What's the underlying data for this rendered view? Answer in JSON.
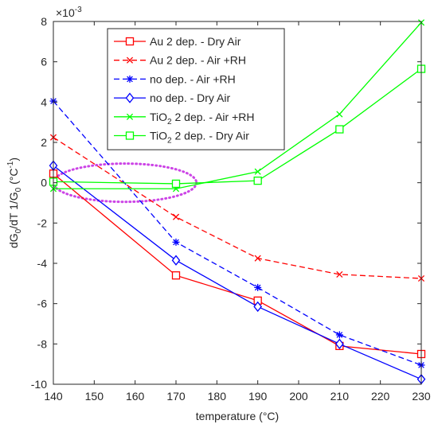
{
  "chart_data": {
    "type": "line",
    "xlabel": "temperature (°C)",
    "ylabel": "dG0/dT 1/G0 (°C-1)",
    "ylabel_parts": {
      "a": "dG",
      "a_sub": "0",
      "b": "/dT 1/G",
      "b_sub": "0",
      "c": " (°C",
      "c_sup": "-1",
      "d": ")"
    },
    "exponent_label": {
      "base": "×10",
      "power": "-3"
    },
    "xlim": [
      140,
      230
    ],
    "ylim": [
      -10,
      8
    ],
    "xticks": [
      140,
      150,
      160,
      170,
      180,
      190,
      200,
      210,
      220,
      230
    ],
    "yticks": [
      -10,
      -8,
      -6,
      -4,
      -2,
      0,
      2,
      4,
      6,
      8
    ],
    "grid": false,
    "legend_position": "top-left inside",
    "series": [
      {
        "name": "Au 2 dep. - Dry Air",
        "legend_parts": {
          "pre": "Au 2 dep. - Dry Air",
          "sub": "",
          "post": ""
        },
        "color": "#ff0000",
        "dash": "solid",
        "marker": "square",
        "x": [
          140,
          170,
          190,
          210,
          230
        ],
        "y": [
          0.45,
          -4.6,
          -5.85,
          -8.1,
          -8.5
        ]
      },
      {
        "name": "Au 2 dep. - Air +RH",
        "legend_parts": {
          "pre": "Au 2 dep. - Air +RH",
          "sub": "",
          "post": ""
        },
        "color": "#ff0000",
        "dash": "dashed",
        "marker": "x",
        "x": [
          140,
          170,
          190,
          210,
          230
        ],
        "y": [
          2.25,
          -1.7,
          -3.75,
          -4.55,
          -4.75
        ]
      },
      {
        "name": "no dep. - Air +RH",
        "legend_parts": {
          "pre": "no dep. - Air +RH",
          "sub": "",
          "post": ""
        },
        "color": "#0000ff",
        "dash": "dashed",
        "marker": "star",
        "x": [
          140,
          170,
          190,
          210,
          230
        ],
        "y": [
          4.05,
          -2.95,
          -5.2,
          -7.55,
          -9.05
        ]
      },
      {
        "name": "no dep. - Dry Air",
        "legend_parts": {
          "pre": "no dep. - Dry Air",
          "sub": "",
          "post": ""
        },
        "color": "#0000ff",
        "dash": "solid",
        "marker": "diamond",
        "x": [
          140,
          170,
          190,
          210,
          230
        ],
        "y": [
          0.85,
          -3.85,
          -6.15,
          -8.0,
          -9.75
        ]
      },
      {
        "name": "TiO2 2 dep. - Air +RH",
        "legend_parts": {
          "pre": "TiO",
          "sub": "2",
          "post": " 2 dep. - Air +RH"
        },
        "color": "#00ff00",
        "dash": "solid",
        "marker": "x",
        "x": [
          140,
          170,
          190,
          210,
          230
        ],
        "y": [
          -0.3,
          -0.3,
          0.55,
          3.4,
          7.95
        ]
      },
      {
        "name": "TiO2 2 dep. - Dry Air",
        "legend_parts": {
          "pre": "TiO",
          "sub": "2",
          "post": " 2 dep. - Dry Air"
        },
        "color": "#00ff00",
        "dash": "solid",
        "marker": "square",
        "x": [
          140,
          170,
          190,
          210,
          230
        ],
        "y": [
          0.05,
          -0.05,
          0.1,
          2.65,
          5.65
        ]
      }
    ],
    "annotations": [
      {
        "type": "dotted-ellipse",
        "color": "#cc44e6",
        "center": [
          157.5,
          0
        ],
        "radius_x": 17.5,
        "radius_y": 0.95
      }
    ]
  }
}
